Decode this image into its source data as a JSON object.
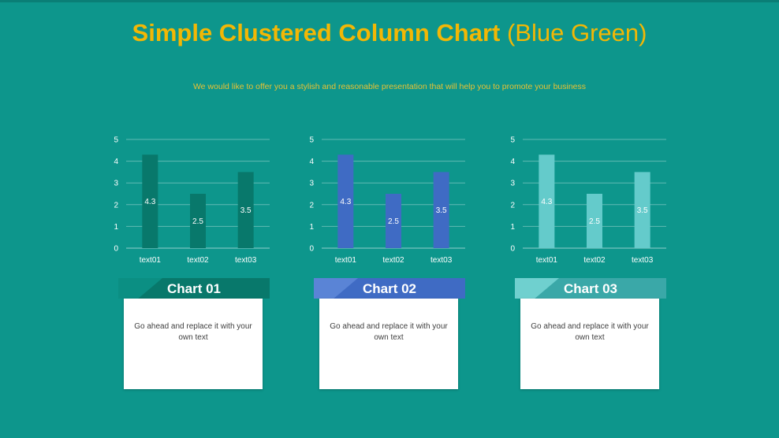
{
  "header": {
    "title_bold": "Simple Clustered Column Chart",
    "title_light": "(Blue Green)",
    "subtitle": "We would like to offer you a stylish and reasonable presentation that will help you to promote your business"
  },
  "chart_data": [
    {
      "type": "bar",
      "categories": [
        "text01",
        "text02",
        "text03"
      ],
      "values": [
        4.3,
        2.5,
        3.5
      ],
      "ylim": [
        0,
        5
      ],
      "yticks": [
        0,
        1,
        2,
        3,
        4,
        5
      ],
      "grid": true,
      "bar_color": "#08786b"
    },
    {
      "type": "bar",
      "categories": [
        "text01",
        "text02",
        "text03"
      ],
      "values": [
        4.3,
        2.5,
        3.5
      ],
      "ylim": [
        0,
        5
      ],
      "yticks": [
        0,
        1,
        2,
        3,
        4,
        5
      ],
      "grid": true,
      "bar_color": "#3f6bc4"
    },
    {
      "type": "bar",
      "categories": [
        "text01",
        "text02",
        "text03"
      ],
      "values": [
        4.3,
        2.5,
        3.5
      ],
      "ylim": [
        0,
        5
      ],
      "yticks": [
        0,
        1,
        2,
        3,
        4,
        5
      ],
      "grid": true,
      "bar_color": "#64cbcb"
    }
  ],
  "cards": [
    {
      "title": "Chart 01",
      "text": "Go ahead and replace it with your own text",
      "color": "#08786b",
      "shade": "#0b8f83"
    },
    {
      "title": "Chart 02",
      "text": "Go ahead and replace it with your own text",
      "color": "#3f6bc4",
      "shade": "#5a84d6"
    },
    {
      "title": "Chart 03",
      "text": "Go ahead and replace it with your own text",
      "color": "#3aa8a8",
      "shade": "#6fd0cf"
    }
  ]
}
